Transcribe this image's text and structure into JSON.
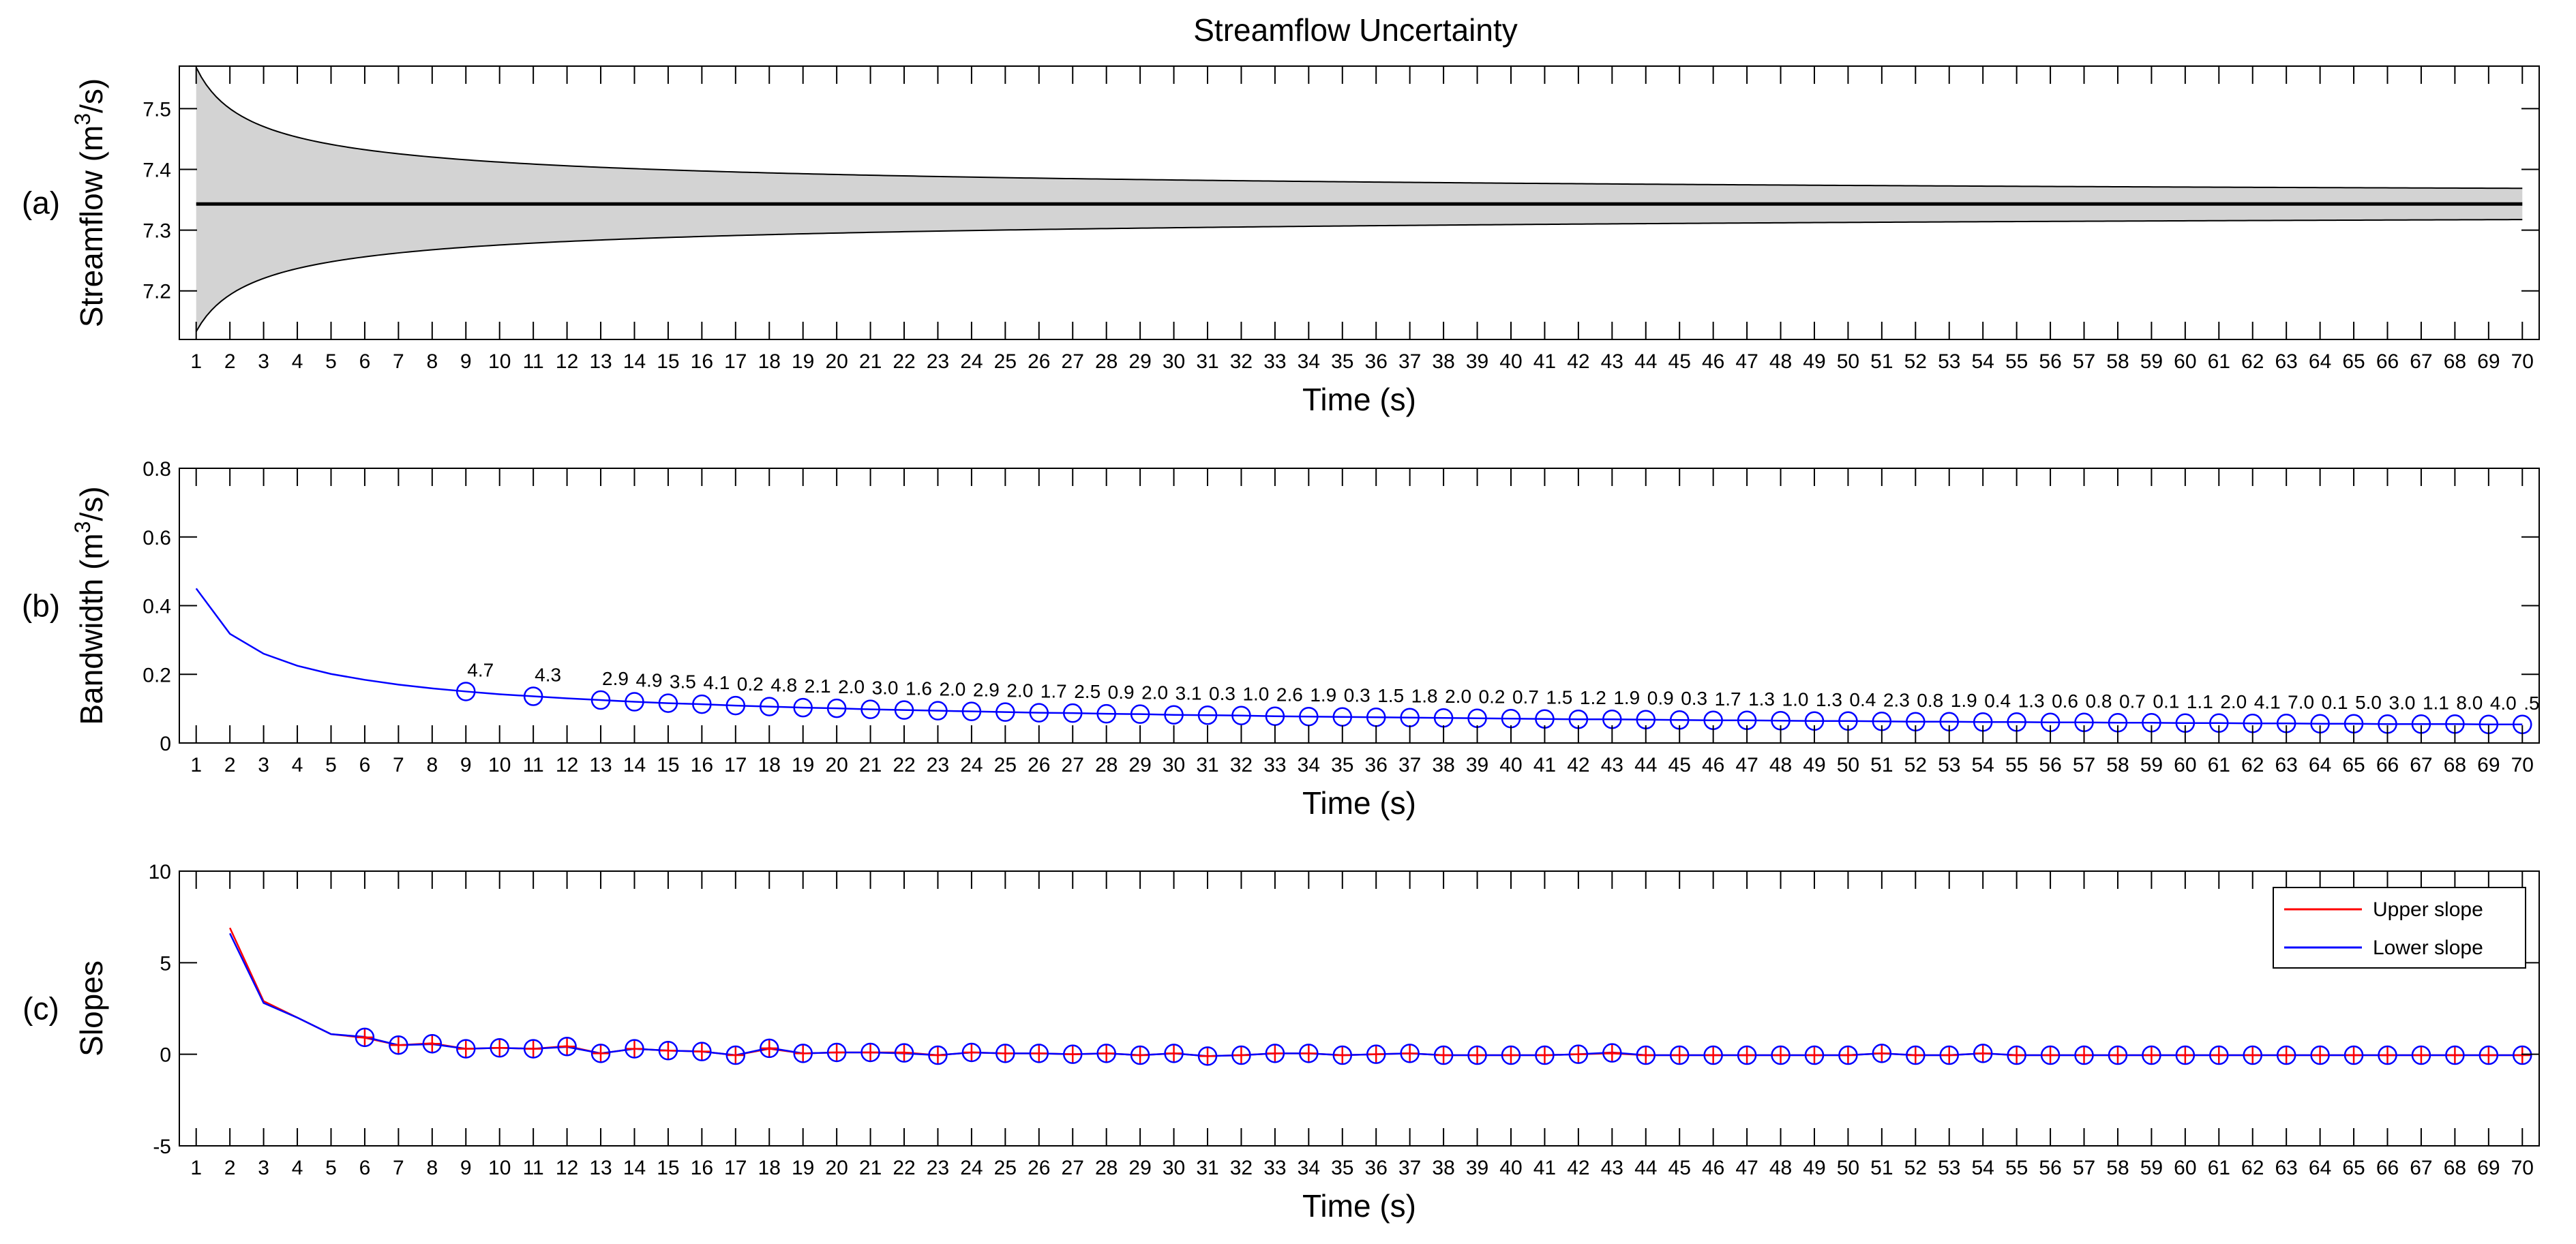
{
  "figure": {
    "title": "Streamflow Uncertainty"
  },
  "chart_data": [
    {
      "panel_label": "(a)",
      "type": "area",
      "title": "Streamflow Uncertainty",
      "xlabel": "Time (s)",
      "ylabel_parts": {
        "pre": "Streamflow (m",
        "sup": "3",
        "post": "/s)"
      },
      "x": [
        1,
        2,
        3,
        4,
        5,
        6,
        7,
        8,
        9,
        10,
        11,
        12,
        13,
        14,
        15,
        16,
        17,
        18,
        19,
        20,
        21,
        22,
        23,
        24,
        25,
        26,
        27,
        28,
        29,
        30,
        31,
        32,
        33,
        34,
        35,
        36,
        37,
        38,
        39,
        40,
        41,
        42,
        43,
        44,
        45,
        46,
        47,
        48,
        49,
        50,
        51,
        52,
        53,
        54,
        55,
        56,
        57,
        58,
        59,
        60,
        61,
        62,
        63,
        64,
        65,
        66,
        67,
        68,
        69,
        70
      ],
      "x_ticks": [
        1,
        2,
        3,
        4,
        5,
        6,
        7,
        8,
        9,
        10,
        11,
        12,
        13,
        14,
        15,
        16,
        17,
        18,
        19,
        20,
        21,
        22,
        23,
        24,
        25,
        26,
        27,
        28,
        29,
        30,
        31,
        32,
        33,
        34,
        35,
        36,
        37,
        38,
        39,
        40,
        41,
        42,
        43,
        44,
        45,
        46,
        47,
        48,
        49,
        50,
        51,
        52,
        53,
        54,
        55,
        56,
        57,
        58,
        59,
        60,
        61,
        62,
        63,
        64,
        65,
        66,
        67,
        68,
        69,
        70
      ],
      "xlim": [
        0.5,
        70.5
      ],
      "ylim": [
        7.12,
        7.57
      ],
      "y_ticks": [
        7.2,
        7.3,
        7.4,
        7.5
      ],
      "y_tick_labels": [
        "7.2",
        "7.3",
        "7.4",
        "7.5"
      ],
      "band_fill": "#d3d3d3",
      "band_edge": "#000000",
      "center_color": "#000000",
      "band_center": 7.343,
      "band_upper_offset": 0.215,
      "series_note_upper": "upper bound ≈ center + band/√x",
      "center_series_value": 7.343
    },
    {
      "panel_label": "(b)",
      "type": "line",
      "xlabel": "Time (s)",
      "ylabel_parts": {
        "pre": "Bandwidth (m",
        "sup": "3",
        "post": "/s)"
      },
      "x_ticks": [
        1,
        2,
        3,
        4,
        5,
        6,
        7,
        8,
        9,
        10,
        11,
        12,
        13,
        14,
        15,
        16,
        17,
        18,
        19,
        20,
        21,
        22,
        23,
        24,
        25,
        26,
        27,
        28,
        29,
        30,
        31,
        32,
        33,
        34,
        35,
        36,
        37,
        38,
        39,
        40,
        41,
        42,
        43,
        44,
        45,
        46,
        47,
        48,
        49,
        50,
        51,
        52,
        53,
        54,
        55,
        56,
        57,
        58,
        59,
        60,
        61,
        62,
        63,
        64,
        65,
        66,
        67,
        68,
        69,
        70
      ],
      "xlim": [
        0.5,
        70.5
      ],
      "ylim": [
        0,
        0.8
      ],
      "y_ticks": [
        0,
        0.2,
        0.4,
        0.6,
        0.8
      ],
      "y_tick_labels": [
        "0",
        "0.2",
        "0.4",
        "0.6",
        "0.8"
      ],
      "line_color": "#0000ff",
      "marker_color": "#0000ff",
      "values": [
        0.45,
        0.318,
        0.26,
        0.225,
        0.201,
        0.184,
        0.17,
        0.159,
        0.15,
        0.142,
        0.136,
        0.13,
        0.125,
        0.12,
        0.116,
        0.113,
        0.109,
        0.106,
        0.103,
        0.101,
        0.098,
        0.096,
        0.094,
        0.092,
        0.09,
        0.088,
        0.087,
        0.085,
        0.084,
        0.082,
        0.081,
        0.08,
        0.078,
        0.077,
        0.076,
        0.075,
        0.074,
        0.073,
        0.072,
        0.071,
        0.07,
        0.069,
        0.069,
        0.068,
        0.067,
        0.066,
        0.066,
        0.065,
        0.064,
        0.064,
        0.063,
        0.062,
        0.062,
        0.061,
        0.061,
        0.06,
        0.06,
        0.059,
        0.059,
        0.058,
        0.058,
        0.057,
        0.057,
        0.056,
        0.056,
        0.055,
        0.055,
        0.055,
        0.054,
        0.054
      ],
      "annotations": [
        {
          "x": 9,
          "text": "4.7"
        },
        {
          "x": 11,
          "text": "4.3"
        },
        {
          "x": 13,
          "text": "2.9"
        },
        {
          "x": 14,
          "text": "4.9"
        },
        {
          "x": 15,
          "text": "3.5"
        },
        {
          "x": 16,
          "text": "4.1"
        },
        {
          "x": 17,
          "text": "0.2"
        },
        {
          "x": 18,
          "text": "4.8"
        },
        {
          "x": 19,
          "text": "2.1"
        },
        {
          "x": 20,
          "text": "2.0"
        },
        {
          "x": 21,
          "text": "3.0"
        },
        {
          "x": 22,
          "text": "1.6"
        },
        {
          "x": 23,
          "text": "2.0"
        },
        {
          "x": 24,
          "text": "2.9"
        },
        {
          "x": 25,
          "text": "2.0"
        },
        {
          "x": 26,
          "text": "1.7"
        },
        {
          "x": 27,
          "text": "2.5"
        },
        {
          "x": 28,
          "text": "0.9"
        },
        {
          "x": 29,
          "text": "2.0"
        },
        {
          "x": 30,
          "text": "3.1"
        },
        {
          "x": 31,
          "text": "0.3"
        },
        {
          "x": 32,
          "text": "1.0"
        },
        {
          "x": 33,
          "text": "2.6"
        },
        {
          "x": 34,
          "text": "1.9"
        },
        {
          "x": 35,
          "text": "0.3"
        },
        {
          "x": 36,
          "text": "1.5"
        },
        {
          "x": 37,
          "text": "1.8"
        },
        {
          "x": 38,
          "text": "2.0"
        },
        {
          "x": 39,
          "text": "0.2"
        },
        {
          "x": 40,
          "text": "0.7"
        },
        {
          "x": 41,
          "text": "1.5"
        },
        {
          "x": 42,
          "text": "1.2"
        },
        {
          "x": 43,
          "text": "1.9"
        },
        {
          "x": 44,
          "text": "0.9"
        },
        {
          "x": 45,
          "text": "0.3"
        },
        {
          "x": 46,
          "text": "1.7"
        },
        {
          "x": 47,
          "text": "1.3"
        },
        {
          "x": 48,
          "text": "1.0"
        },
        {
          "x": 49,
          "text": "1.3"
        },
        {
          "x": 50,
          "text": "0.4"
        },
        {
          "x": 51,
          "text": "2.3"
        },
        {
          "x": 52,
          "text": "0.8"
        },
        {
          "x": 53,
          "text": "1.9"
        },
        {
          "x": 54,
          "text": "0.4"
        },
        {
          "x": 55,
          "text": "1.3"
        },
        {
          "x": 56,
          "text": "0.6"
        },
        {
          "x": 57,
          "text": "0.8"
        },
        {
          "x": 58,
          "text": "0.7"
        },
        {
          "x": 59,
          "text": "0.1"
        },
        {
          "x": 60,
          "text": "1.1"
        },
        {
          "x": 61,
          "text": "2.0"
        },
        {
          "x": 62,
          "text": "4.1"
        },
        {
          "x": 63,
          "text": "7.0"
        },
        {
          "x": 64,
          "text": "0.1"
        },
        {
          "x": 65,
          "text": "5.0"
        },
        {
          "x": 66,
          "text": "3.0"
        },
        {
          "x": 67,
          "text": "1.1"
        },
        {
          "x": 68,
          "text": "8.0"
        },
        {
          "x": 69,
          "text": "4.0"
        },
        {
          "x": 70,
          "text": ".5"
        }
      ]
    },
    {
      "panel_label": "(c)",
      "type": "line",
      "xlabel": "Time (s)",
      "ylabel": "Slopes",
      "x_ticks": [
        1,
        2,
        3,
        4,
        5,
        6,
        7,
        8,
        9,
        10,
        11,
        12,
        13,
        14,
        15,
        16,
        17,
        18,
        19,
        20,
        21,
        22,
        23,
        24,
        25,
        26,
        27,
        28,
        29,
        30,
        31,
        32,
        33,
        34,
        35,
        36,
        37,
        38,
        39,
        40,
        41,
        42,
        43,
        44,
        45,
        46,
        47,
        48,
        49,
        50,
        51,
        52,
        53,
        54,
        55,
        56,
        57,
        58,
        59,
        60,
        61,
        62,
        63,
        64,
        65,
        66,
        67,
        68,
        69,
        70
      ],
      "xlim": [
        0.5,
        70.5
      ],
      "ylim": [
        -5,
        10
      ],
      "y_ticks": [
        -5,
        0,
        5,
        10
      ],
      "y_tick_labels": [
        "-5",
        "0",
        "5",
        "10"
      ],
      "legend_position": "top-right",
      "x": [
        2,
        3,
        4,
        5,
        6,
        7,
        8,
        9,
        10,
        11,
        12,
        13,
        14,
        15,
        16,
        17,
        18,
        19,
        20,
        21,
        22,
        23,
        24,
        25,
        26,
        27,
        28,
        29,
        30,
        31,
        32,
        33,
        34,
        35,
        36,
        37,
        38,
        39,
        40,
        41,
        42,
        43,
        44,
        45,
        46,
        47,
        48,
        49,
        50,
        51,
        52,
        53,
        54,
        55,
        56,
        57,
        58,
        59,
        60,
        61,
        62,
        63,
        64,
        65,
        66,
        67,
        68,
        69,
        70
      ],
      "series": [
        {
          "name": "Upper slope",
          "color": "#ff0000",
          "values": [
            6.9,
            2.9,
            2.0,
            1.1,
            0.9,
            0.5,
            0.6,
            0.3,
            0.35,
            0.3,
            0.45,
            0.05,
            0.3,
            0.2,
            0.15,
            -0.05,
            0.3,
            0.05,
            0.1,
            0.1,
            0.1,
            -0.05,
            0.1,
            0.05,
            0.05,
            0.0,
            0.05,
            -0.05,
            0.05,
            -0.1,
            -0.05,
            0.05,
            0.05,
            -0.05,
            0.0,
            0.05,
            -0.05,
            -0.05,
            -0.05,
            -0.05,
            0.0,
            0.05,
            -0.05,
            -0.05,
            -0.05,
            -0.05,
            -0.05,
            -0.05,
            -0.05,
            0.05,
            -0.05,
            -0.05,
            0.05,
            -0.05,
            -0.05,
            -0.05,
            -0.05,
            -0.05,
            -0.05,
            -0.05,
            -0.05,
            -0.05,
            -0.05,
            -0.05,
            -0.05,
            -0.05,
            -0.05,
            -0.05,
            -0.05
          ]
        },
        {
          "name": "Lower slope",
          "color": "#0000ff",
          "values": [
            6.6,
            2.8,
            2.0,
            1.1,
            0.95,
            0.5,
            0.55,
            0.3,
            0.35,
            0.3,
            0.4,
            0.05,
            0.3,
            0.2,
            0.15,
            -0.05,
            0.35,
            0.05,
            0.1,
            0.1,
            0.05,
            -0.05,
            0.1,
            0.05,
            0.05,
            0.0,
            0.05,
            -0.05,
            0.05,
            -0.1,
            -0.05,
            0.05,
            0.05,
            -0.05,
            0.0,
            0.05,
            -0.05,
            -0.05,
            -0.05,
            -0.05,
            0.0,
            0.1,
            -0.05,
            -0.05,
            -0.05,
            -0.05,
            -0.05,
            -0.05,
            -0.05,
            0.05,
            -0.05,
            -0.05,
            0.05,
            -0.05,
            -0.05,
            -0.05,
            -0.05,
            -0.05,
            -0.05,
            -0.05,
            -0.05,
            -0.05,
            -0.05,
            -0.05,
            -0.05,
            -0.05,
            -0.05,
            -0.05,
            -0.05
          ]
        }
      ],
      "marker_x": [
        6,
        7,
        8,
        9,
        10,
        11,
        12,
        13,
        14,
        15,
        16,
        17,
        18,
        19,
        20,
        21,
        22,
        23,
        24,
        25,
        26,
        27,
        28,
        29,
        30,
        31,
        32,
        33,
        34,
        35,
        36,
        37,
        38,
        39,
        40,
        41,
        42,
        43,
        44,
        45,
        46,
        47,
        48,
        49,
        50,
        51,
        52,
        53,
        54,
        55,
        56,
        57,
        58,
        59,
        60,
        61,
        62,
        63,
        64,
        65,
        66,
        67,
        68,
        69,
        70
      ]
    }
  ]
}
